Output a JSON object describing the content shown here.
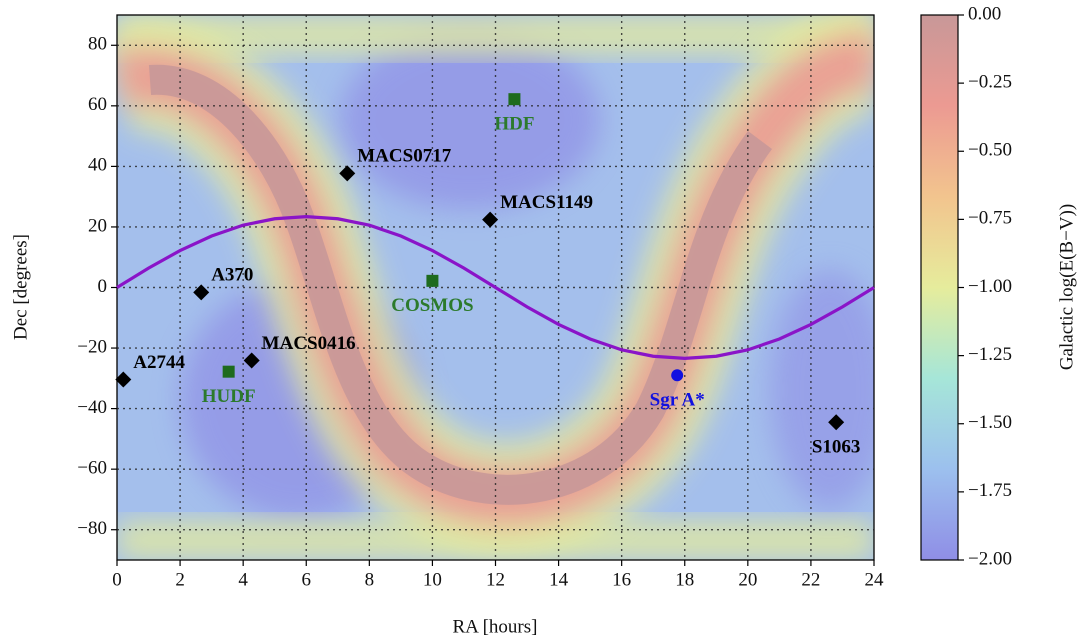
{
  "chart_data": {
    "type": "scatter",
    "xlabel": "RA [hours]",
    "ylabel": "Dec [degrees]",
    "xlim": [
      0,
      24
    ],
    "ylim": [
      -90,
      90
    ],
    "xticks": [
      0,
      2,
      4,
      6,
      8,
      10,
      12,
      14,
      16,
      18,
      20,
      22,
      24
    ],
    "yticks": [
      {
        "value": -80,
        "label": "−80"
      },
      {
        "value": -60,
        "label": "−60"
      },
      {
        "value": -40,
        "label": "−40"
      },
      {
        "value": -20,
        "label": "−20"
      },
      0,
      20,
      40,
      60,
      80
    ],
    "grid": true,
    "curve": {
      "color": "#8a14c8",
      "x": [
        0,
        1,
        2,
        3,
        4,
        5,
        6,
        7,
        8,
        9,
        10,
        11,
        12,
        13,
        14,
        15,
        16,
        17,
        18,
        19,
        20,
        21,
        22,
        23,
        24
      ],
      "values": [
        0,
        6.4,
        12.2,
        17.0,
        20.6,
        22.7,
        23.4,
        22.7,
        20.6,
        17.0,
        12.2,
        6.4,
        0,
        -6.4,
        -12.2,
        -17.0,
        -20.6,
        -22.7,
        -23.4,
        -22.7,
        -20.6,
        -17.0,
        -12.2,
        -6.4,
        0
      ]
    },
    "points": [
      {
        "label": "A2744",
        "ra": 0.2,
        "dec": -30.4,
        "marker": "diamond",
        "color": "#000000"
      },
      {
        "label": "A370",
        "ra": 2.67,
        "dec": -1.6,
        "marker": "diamond",
        "color": "#000000"
      },
      {
        "label": "MACS0416",
        "ra": 4.27,
        "dec": -24.1,
        "marker": "diamond",
        "color": "#000000"
      },
      {
        "label": "MACS0717",
        "ra": 7.3,
        "dec": 37.7,
        "marker": "diamond",
        "color": "#000000"
      },
      {
        "label": "MACS1149",
        "ra": 11.83,
        "dec": 22.4,
        "marker": "diamond",
        "color": "#000000"
      },
      {
        "label": "S1063",
        "ra": 22.8,
        "dec": -44.5,
        "marker": "diamond",
        "color": "#000000"
      },
      {
        "label": "HDF",
        "ra": 12.6,
        "dec": 62.2,
        "marker": "square",
        "color": "#1e6b1e"
      },
      {
        "label": "COSMOS",
        "ra": 10.0,
        "dec": 2.2,
        "marker": "square",
        "color": "#1e6b1e"
      },
      {
        "label": "HUDF",
        "ra": 3.54,
        "dec": -27.8,
        "marker": "square",
        "color": "#1e6b1e"
      },
      {
        "label": "Sgr A*",
        "ra": 17.76,
        "dec": -29.0,
        "marker": "circle",
        "color": "#1010e0"
      }
    ],
    "colorbar": {
      "label": "Galactic log(E(B−V))",
      "lim": [
        -2,
        0
      ],
      "ticks": [
        {
          "value": 0,
          "label": "0.00"
        },
        {
          "value": -0.25,
          "label": "−0.25"
        },
        {
          "value": -0.5,
          "label": "−0.50"
        },
        {
          "value": -0.75,
          "label": "−0.75"
        },
        {
          "value": -1,
          "label": "−1.00"
        },
        {
          "value": -1.25,
          "label": "−1.25"
        },
        {
          "value": -1.5,
          "label": "−1.50"
        },
        {
          "value": -1.75,
          "label": "−1.75"
        },
        {
          "value": -2,
          "label": "−2.00"
        }
      ],
      "colors": [
        "#8f8ee6",
        "#9cc0ee",
        "#a6e6d8",
        "#e6ec9c",
        "#f2c48e",
        "#ec9a92",
        "#c89898"
      ]
    }
  }
}
